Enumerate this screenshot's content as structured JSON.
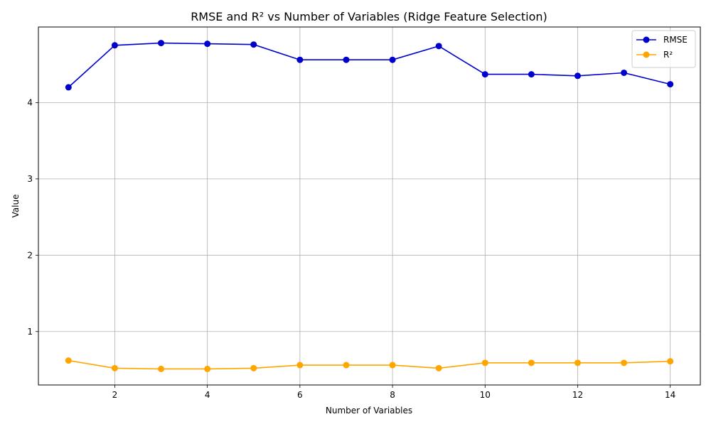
{
  "chart_data": {
    "type": "line",
    "title": "RMSE and R² vs Number of Variables (Ridge Feature Selection)",
    "xlabel": "Number of Variables",
    "ylabel": "Value",
    "x": [
      1,
      2,
      3,
      4,
      5,
      6,
      7,
      8,
      9,
      10,
      11,
      12,
      13,
      14
    ],
    "xlim": [
      0.35,
      14.65
    ],
    "ylim": [
      0.3,
      4.99
    ],
    "xticks": [
      2,
      4,
      6,
      8,
      10,
      12,
      14
    ],
    "yticks": [
      1,
      2,
      3,
      4
    ],
    "grid": true,
    "legend_position": "top-right",
    "series": [
      {
        "name": "RMSE",
        "color": "#0000cd",
        "marker": "circle",
        "values": [
          4.2,
          4.75,
          4.78,
          4.77,
          4.76,
          4.56,
          4.56,
          4.56,
          4.74,
          4.37,
          4.37,
          4.35,
          4.39,
          4.24
        ]
      },
      {
        "name": "R²",
        "color": "#ffa500",
        "marker": "circle",
        "values": [
          0.62,
          0.52,
          0.51,
          0.51,
          0.52,
          0.56,
          0.56,
          0.56,
          0.52,
          0.59,
          0.59,
          0.59,
          0.59,
          0.61
        ]
      }
    ]
  }
}
